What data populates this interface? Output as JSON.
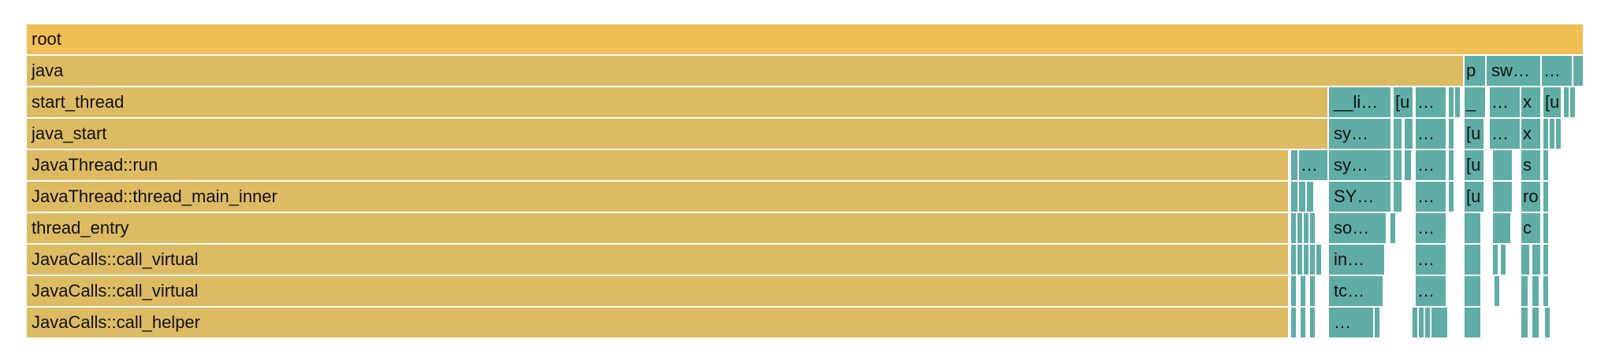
{
  "colors": {
    "root": "#f2be56",
    "user": "#dcbb63",
    "kernel": "#5fada4",
    "separator": "#ffffff"
  },
  "frames": [
    {
      "label": "root",
      "depth": 0,
      "start": 0,
      "width": 1974,
      "kind": "root"
    },
    {
      "label": "java",
      "depth": 1,
      "start": 0,
      "width": 1822,
      "kind": "user"
    },
    {
      "label": "p",
      "depth": 1,
      "start": 1824,
      "width": 26,
      "kind": "kernel"
    },
    {
      "label": "sw…",
      "depth": 1,
      "start": 1852,
      "width": 68,
      "kind": "kernel"
    },
    {
      "label": "…",
      "depth": 1,
      "start": 1922,
      "width": 38,
      "kind": "kernel"
    },
    {
      "label": "",
      "depth": 1,
      "start": 1962,
      "width": 12,
      "kind": "kernel"
    },
    {
      "label": "start_thread",
      "depth": 2,
      "start": 0,
      "width": 1650,
      "kind": "user"
    },
    {
      "label": "__li…",
      "depth": 2,
      "start": 1652,
      "width": 78,
      "kind": "kernel"
    },
    {
      "label": "[u",
      "depth": 2,
      "start": 1734,
      "width": 24,
      "kind": "kernel"
    },
    {
      "label": "…",
      "depth": 2,
      "start": 1762,
      "width": 38,
      "kind": "kernel"
    },
    {
      "label": "",
      "depth": 2,
      "start": 1804,
      "width": 6,
      "kind": "kernel"
    },
    {
      "label": "",
      "depth": 2,
      "start": 1812,
      "width": 6,
      "kind": "kernel"
    },
    {
      "label": "_",
      "depth": 2,
      "start": 1824,
      "width": 26,
      "kind": "kernel"
    },
    {
      "label": "…",
      "depth": 2,
      "start": 1856,
      "width": 38,
      "kind": "kernel"
    },
    {
      "label": "x",
      "depth": 2,
      "start": 1896,
      "width": 24,
      "kind": "kernel"
    },
    {
      "label": "[u",
      "depth": 2,
      "start": 1924,
      "width": 22,
      "kind": "kernel"
    },
    {
      "label": "",
      "depth": 2,
      "start": 1950,
      "width": 6,
      "kind": "kernel"
    },
    {
      "label": "",
      "depth": 2,
      "start": 1958,
      "width": 6,
      "kind": "kernel"
    },
    {
      "label": "java_start",
      "depth": 3,
      "start": 0,
      "width": 1650,
      "kind": "user"
    },
    {
      "label": "sy…",
      "depth": 3,
      "start": 1652,
      "width": 78,
      "kind": "kernel"
    },
    {
      "label": "",
      "depth": 3,
      "start": 1734,
      "width": 10,
      "kind": "kernel"
    },
    {
      "label": "",
      "depth": 3,
      "start": 1748,
      "width": 10,
      "kind": "kernel"
    },
    {
      "label": "…",
      "depth": 3,
      "start": 1762,
      "width": 38,
      "kind": "kernel"
    },
    {
      "label": "",
      "depth": 3,
      "start": 1804,
      "width": 6,
      "kind": "kernel"
    },
    {
      "label": "[u",
      "depth": 3,
      "start": 1824,
      "width": 24,
      "kind": "kernel"
    },
    {
      "label": "…",
      "depth": 3,
      "start": 1856,
      "width": 38,
      "kind": "kernel"
    },
    {
      "label": "x",
      "depth": 3,
      "start": 1896,
      "width": 24,
      "kind": "kernel"
    },
    {
      "label": "",
      "depth": 3,
      "start": 1924,
      "width": 6,
      "kind": "kernel"
    },
    {
      "label": "",
      "depth": 3,
      "start": 1932,
      "width": 6,
      "kind": "kernel"
    },
    {
      "label": "",
      "depth": 3,
      "start": 1940,
      "width": 6,
      "kind": "kernel"
    },
    {
      "label": "JavaThread::run",
      "depth": 4,
      "start": 0,
      "width": 1600,
      "kind": "user"
    },
    {
      "label": "",
      "depth": 4,
      "start": 1604,
      "width": 8,
      "kind": "kernel"
    },
    {
      "label": "…",
      "depth": 4,
      "start": 1614,
      "width": 36,
      "kind": "kernel"
    },
    {
      "label": "sy…",
      "depth": 4,
      "start": 1652,
      "width": 78,
      "kind": "kernel"
    },
    {
      "label": "",
      "depth": 4,
      "start": 1734,
      "width": 10,
      "kind": "kernel"
    },
    {
      "label": "",
      "depth": 4,
      "start": 1748,
      "width": 8,
      "kind": "kernel"
    },
    {
      "label": "…",
      "depth": 4,
      "start": 1762,
      "width": 38,
      "kind": "kernel"
    },
    {
      "label": "",
      "depth": 4,
      "start": 1804,
      "width": 6,
      "kind": "kernel"
    },
    {
      "label": "[u",
      "depth": 4,
      "start": 1824,
      "width": 24,
      "kind": "kernel"
    },
    {
      "label": "",
      "depth": 4,
      "start": 1860,
      "width": 24,
      "kind": "kernel"
    },
    {
      "label": "s",
      "depth": 4,
      "start": 1896,
      "width": 24,
      "kind": "kernel"
    },
    {
      "label": "",
      "depth": 4,
      "start": 1924,
      "width": 6,
      "kind": "kernel"
    },
    {
      "label": "JavaThread::thread_main_inner",
      "depth": 5,
      "start": 0,
      "width": 1600,
      "kind": "user"
    },
    {
      "label": "",
      "depth": 5,
      "start": 1604,
      "width": 8,
      "kind": "kernel"
    },
    {
      "label": "",
      "depth": 5,
      "start": 1614,
      "width": 8,
      "kind": "kernel"
    },
    {
      "label": "",
      "depth": 5,
      "start": 1624,
      "width": 8,
      "kind": "kernel"
    },
    {
      "label": "SY…",
      "depth": 5,
      "start": 1652,
      "width": 78,
      "kind": "kernel"
    },
    {
      "label": "",
      "depth": 5,
      "start": 1734,
      "width": 10,
      "kind": "kernel"
    },
    {
      "label": "…",
      "depth": 5,
      "start": 1762,
      "width": 38,
      "kind": "kernel"
    },
    {
      "label": "",
      "depth": 5,
      "start": 1804,
      "width": 6,
      "kind": "kernel"
    },
    {
      "label": "[u",
      "depth": 5,
      "start": 1824,
      "width": 24,
      "kind": "kernel"
    },
    {
      "label": "",
      "depth": 5,
      "start": 1860,
      "width": 24,
      "kind": "kernel"
    },
    {
      "label": "ro",
      "depth": 5,
      "start": 1896,
      "width": 24,
      "kind": "kernel"
    },
    {
      "label": "",
      "depth": 5,
      "start": 1924,
      "width": 6,
      "kind": "kernel"
    },
    {
      "label": "thread_entry",
      "depth": 6,
      "start": 0,
      "width": 1600,
      "kind": "user"
    },
    {
      "label": "",
      "depth": 6,
      "start": 1604,
      "width": 6,
      "kind": "kernel"
    },
    {
      "label": "",
      "depth": 6,
      "start": 1612,
      "width": 6,
      "kind": "kernel"
    },
    {
      "label": "",
      "depth": 6,
      "start": 1620,
      "width": 6,
      "kind": "kernel"
    },
    {
      "label": "",
      "depth": 6,
      "start": 1628,
      "width": 6,
      "kind": "kernel"
    },
    {
      "label": "so…",
      "depth": 6,
      "start": 1652,
      "width": 72,
      "kind": "kernel"
    },
    {
      "label": "",
      "depth": 6,
      "start": 1730,
      "width": 6,
      "kind": "kernel"
    },
    {
      "label": "…",
      "depth": 6,
      "start": 1762,
      "width": 38,
      "kind": "kernel"
    },
    {
      "label": "",
      "depth": 6,
      "start": 1824,
      "width": 20,
      "kind": "kernel"
    },
    {
      "label": "",
      "depth": 6,
      "start": 1860,
      "width": 22,
      "kind": "kernel"
    },
    {
      "label": "c",
      "depth": 6,
      "start": 1896,
      "width": 24,
      "kind": "kernel"
    },
    {
      "label": "",
      "depth": 6,
      "start": 1924,
      "width": 6,
      "kind": "kernel"
    },
    {
      "label": "JavaCalls::call_virtual",
      "depth": 7,
      "start": 0,
      "width": 1600,
      "kind": "user"
    },
    {
      "label": "",
      "depth": 7,
      "start": 1604,
      "width": 6,
      "kind": "kernel"
    },
    {
      "label": "",
      "depth": 7,
      "start": 1612,
      "width": 6,
      "kind": "kernel"
    },
    {
      "label": "",
      "depth": 7,
      "start": 1620,
      "width": 6,
      "kind": "kernel"
    },
    {
      "label": "",
      "depth": 7,
      "start": 1628,
      "width": 6,
      "kind": "kernel"
    },
    {
      "label": "",
      "depth": 7,
      "start": 1636,
      "width": 6,
      "kind": "kernel"
    },
    {
      "label": "in…",
      "depth": 7,
      "start": 1652,
      "width": 70,
      "kind": "kernel"
    },
    {
      "label": "…",
      "depth": 7,
      "start": 1762,
      "width": 38,
      "kind": "kernel"
    },
    {
      "label": "",
      "depth": 7,
      "start": 1824,
      "width": 20,
      "kind": "kernel"
    },
    {
      "label": "",
      "depth": 7,
      "start": 1860,
      "width": 6,
      "kind": "kernel"
    },
    {
      "label": "",
      "depth": 7,
      "start": 1870,
      "width": 6,
      "kind": "kernel"
    },
    {
      "label": "",
      "depth": 7,
      "start": 1896,
      "width": 10,
      "kind": "kernel"
    },
    {
      "label": "",
      "depth": 7,
      "start": 1910,
      "width": 10,
      "kind": "kernel"
    },
    {
      "label": "",
      "depth": 7,
      "start": 1924,
      "width": 6,
      "kind": "kernel"
    },
    {
      "label": "JavaCalls::call_virtual",
      "depth": 8,
      "start": 0,
      "width": 1600,
      "kind": "user"
    },
    {
      "label": "",
      "depth": 8,
      "start": 1604,
      "width": 6,
      "kind": "kernel"
    },
    {
      "label": "",
      "depth": 8,
      "start": 1616,
      "width": 6,
      "kind": "kernel"
    },
    {
      "label": "",
      "depth": 8,
      "start": 1628,
      "width": 6,
      "kind": "kernel"
    },
    {
      "label": "tc…",
      "depth": 8,
      "start": 1652,
      "width": 68,
      "kind": "kernel"
    },
    {
      "label": "…",
      "depth": 8,
      "start": 1762,
      "width": 38,
      "kind": "kernel"
    },
    {
      "label": "",
      "depth": 8,
      "start": 1824,
      "width": 20,
      "kind": "kernel"
    },
    {
      "label": "",
      "depth": 8,
      "start": 1862,
      "width": 6,
      "kind": "kernel"
    },
    {
      "label": "",
      "depth": 8,
      "start": 1896,
      "width": 8,
      "kind": "kernel"
    },
    {
      "label": "",
      "depth": 8,
      "start": 1910,
      "width": 8,
      "kind": "kernel"
    },
    {
      "label": "",
      "depth": 8,
      "start": 1924,
      "width": 6,
      "kind": "kernel"
    },
    {
      "label": "JavaCalls::call_helper",
      "depth": 9,
      "start": 0,
      "width": 1600,
      "kind": "user"
    },
    {
      "label": "",
      "depth": 9,
      "start": 1604,
      "width": 6,
      "kind": "kernel"
    },
    {
      "label": "",
      "depth": 9,
      "start": 1616,
      "width": 6,
      "kind": "kernel"
    },
    {
      "label": "",
      "depth": 9,
      "start": 1628,
      "width": 6,
      "kind": "kernel"
    },
    {
      "label": "…",
      "depth": 9,
      "start": 1652,
      "width": 56,
      "kind": "kernel"
    },
    {
      "label": "",
      "depth": 9,
      "start": 1710,
      "width": 6,
      "kind": "kernel"
    },
    {
      "label": "",
      "depth": 9,
      "start": 1758,
      "width": 6,
      "kind": "kernel"
    },
    {
      "label": "",
      "depth": 9,
      "start": 1766,
      "width": 6,
      "kind": "kernel"
    },
    {
      "label": "",
      "depth": 9,
      "start": 1774,
      "width": 6,
      "kind": "kernel"
    },
    {
      "label": "",
      "depth": 9,
      "start": 1782,
      "width": 20,
      "kind": "kernel"
    },
    {
      "label": "",
      "depth": 9,
      "start": 1824,
      "width": 20,
      "kind": "kernel"
    },
    {
      "label": "",
      "depth": 9,
      "start": 1896,
      "width": 8,
      "kind": "kernel"
    },
    {
      "label": "",
      "depth": 9,
      "start": 1910,
      "width": 8,
      "kind": "kernel"
    },
    {
      "label": "",
      "depth": 9,
      "start": 1926,
      "width": 6,
      "kind": "kernel"
    }
  ]
}
